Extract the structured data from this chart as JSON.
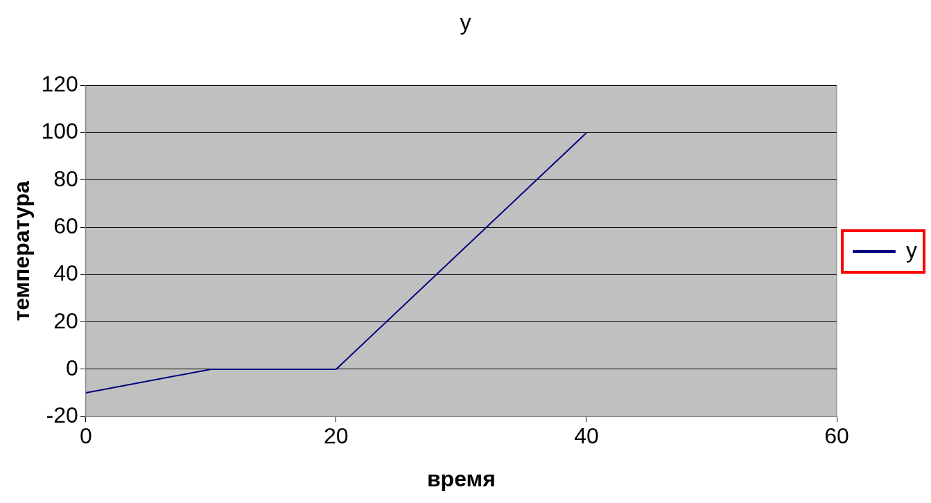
{
  "chart_data": {
    "type": "line",
    "title": "y",
    "xlabel": "время",
    "ylabel": "температура",
    "x": [
      0,
      10,
      20,
      40
    ],
    "series": [
      {
        "name": "y",
        "color": "#000080",
        "values": [
          -10,
          0,
          0,
          100
        ]
      }
    ],
    "xlim": [
      0,
      60
    ],
    "xticks": [
      0,
      20,
      40,
      60
    ],
    "ylim": [
      -20,
      120
    ],
    "yticks": [
      -20,
      0,
      20,
      40,
      60,
      80,
      100,
      120
    ],
    "grid": "y",
    "legend": "right",
    "marker": "none",
    "line_style": "solid"
  }
}
